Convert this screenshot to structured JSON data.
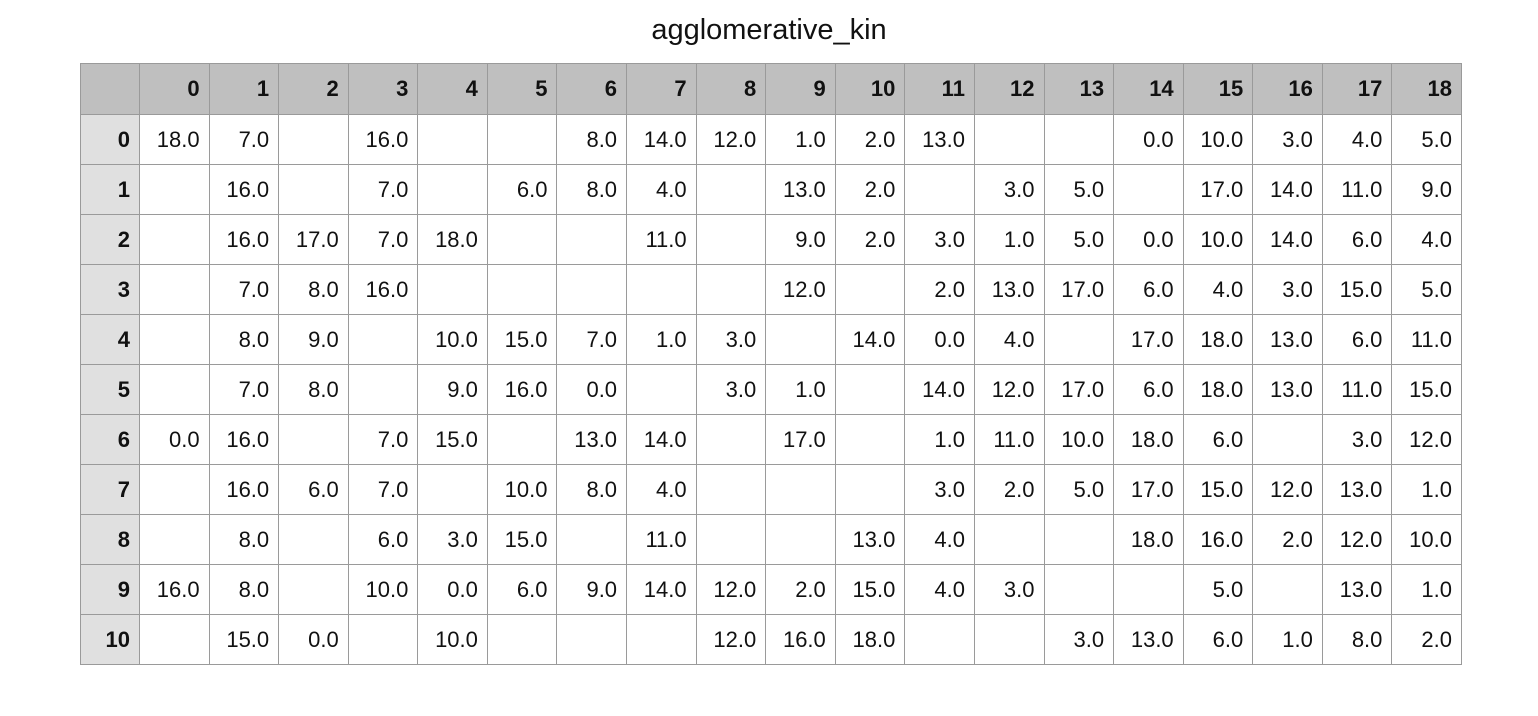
{
  "chart_data": {
    "type": "table",
    "title": "agglomerative_kin",
    "columns": [
      "0",
      "1",
      "2",
      "3",
      "4",
      "5",
      "6",
      "7",
      "8",
      "9",
      "10",
      "11",
      "12",
      "13",
      "14",
      "15",
      "16",
      "17",
      "18"
    ],
    "index": [
      "0",
      "1",
      "2",
      "3",
      "4",
      "5",
      "6",
      "7",
      "8",
      "9",
      "10"
    ],
    "rows": [
      [
        "18.0",
        "7.0",
        "",
        "16.0",
        "",
        "",
        "8.0",
        "14.0",
        "12.0",
        "1.0",
        "2.0",
        "13.0",
        "",
        "",
        "0.0",
        "10.0",
        "3.0",
        "4.0",
        "5.0"
      ],
      [
        "",
        "16.0",
        "",
        "7.0",
        "",
        "6.0",
        "8.0",
        "4.0",
        "",
        "13.0",
        "2.0",
        "",
        "3.0",
        "5.0",
        "",
        "17.0",
        "14.0",
        "11.0",
        "9.0"
      ],
      [
        "",
        "16.0",
        "17.0",
        "7.0",
        "18.0",
        "",
        "",
        "11.0",
        "",
        "9.0",
        "2.0",
        "3.0",
        "1.0",
        "5.0",
        "0.0",
        "10.0",
        "14.0",
        "6.0",
        "4.0"
      ],
      [
        "",
        "7.0",
        "8.0",
        "16.0",
        "",
        "",
        "",
        "",
        "",
        "12.0",
        "",
        "2.0",
        "13.0",
        "17.0",
        "6.0",
        "4.0",
        "3.0",
        "15.0",
        "5.0"
      ],
      [
        "",
        "8.0",
        "9.0",
        "",
        "10.0",
        "15.0",
        "7.0",
        "1.0",
        "3.0",
        "",
        "14.0",
        "0.0",
        "4.0",
        "",
        "17.0",
        "18.0",
        "13.0",
        "6.0",
        "11.0"
      ],
      [
        "",
        "7.0",
        "8.0",
        "",
        "9.0",
        "16.0",
        "0.0",
        "",
        "3.0",
        "1.0",
        "",
        "14.0",
        "12.0",
        "17.0",
        "6.0",
        "18.0",
        "13.0",
        "11.0",
        "15.0"
      ],
      [
        "0.0",
        "16.0",
        "",
        "7.0",
        "15.0",
        "",
        "13.0",
        "14.0",
        "",
        "17.0",
        "",
        "1.0",
        "11.0",
        "10.0",
        "18.0",
        "6.0",
        "",
        "3.0",
        "12.0"
      ],
      [
        "",
        "16.0",
        "6.0",
        "7.0",
        "",
        "10.0",
        "8.0",
        "4.0",
        "",
        "",
        "",
        "3.0",
        "2.0",
        "5.0",
        "17.0",
        "15.0",
        "12.0",
        "13.0",
        "1.0"
      ],
      [
        "",
        "8.0",
        "",
        "6.0",
        "3.0",
        "15.0",
        "",
        "11.0",
        "",
        "",
        "13.0",
        "4.0",
        "",
        "",
        "18.0",
        "16.0",
        "2.0",
        "12.0",
        "10.0"
      ],
      [
        "16.0",
        "8.0",
        "",
        "10.0",
        "0.0",
        "6.0",
        "9.0",
        "14.0",
        "12.0",
        "2.0",
        "15.0",
        "4.0",
        "3.0",
        "",
        "",
        "5.0",
        "",
        "13.0",
        "1.0"
      ],
      [
        "",
        "15.0",
        "0.0",
        "",
        "10.0",
        "",
        "",
        "",
        "12.0",
        "16.0",
        "18.0",
        "",
        "",
        "3.0",
        "13.0",
        "6.0",
        "1.0",
        "8.0",
        "2.0"
      ]
    ],
    "colors": {
      "header_bg": "#bfbfbf",
      "index_bg": "#e0e0e0",
      "cell_bg": "#ffffff",
      "grid": "#9a9a9a"
    }
  }
}
